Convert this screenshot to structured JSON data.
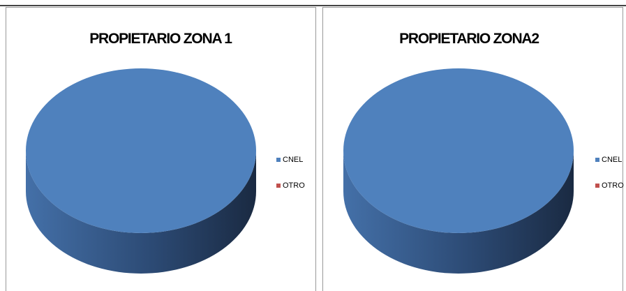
{
  "chart_data": [
    {
      "type": "pie3d",
      "title": "PROPIETARIO ZONA 1",
      "categories": [
        "CNEL",
        "OTRO"
      ],
      "values": [
        100,
        0
      ],
      "colors": [
        "#4f81bd",
        "#c0504d"
      ],
      "legend": "right"
    },
    {
      "type": "pie3d",
      "title": "PROPIETARIO ZONA2",
      "categories": [
        "CNEL",
        "OTRO"
      ],
      "values": [
        100,
        0
      ],
      "colors": [
        "#4f81bd",
        "#c0504d"
      ],
      "legend": "right"
    }
  ]
}
